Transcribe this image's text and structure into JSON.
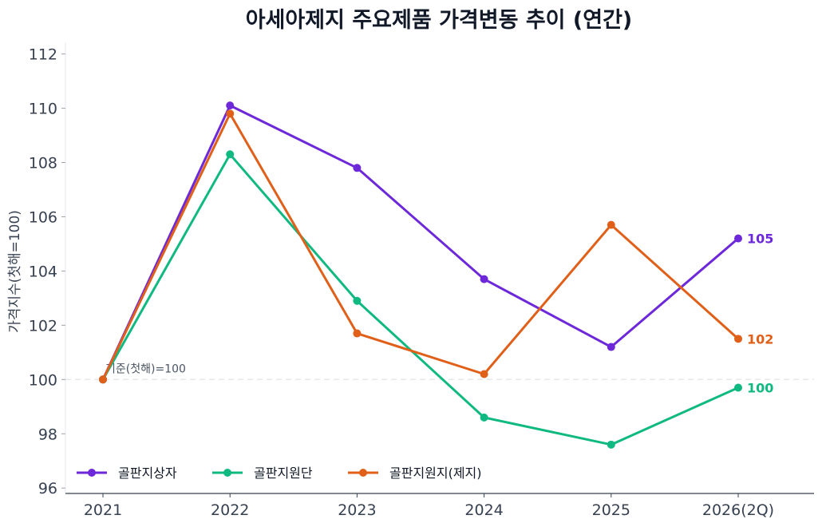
{
  "chart_data": {
    "type": "line",
    "title": "아세아제지 주요제품 가격변동 추이 (연간)",
    "ylabel": "가격지수(첫해=100)",
    "xlabel": "",
    "categories": [
      "2021",
      "2022",
      "2023",
      "2024",
      "2025",
      "2026(2Q)"
    ],
    "ylim": [
      95.8,
      112.4
    ],
    "yticks": [
      96,
      98,
      100,
      102,
      104,
      106,
      108,
      110,
      112
    ],
    "grid": false,
    "legend_position": "bottom-left",
    "reference_line": {
      "value": 100,
      "label": "기준(첫해)=100",
      "color": "#e5e7eb"
    },
    "series": [
      {
        "name": "골판지상자",
        "color": "#6d28d9",
        "values": [
          100,
          110.1,
          107.8,
          103.7,
          101.2,
          105.2
        ],
        "end_label": "105"
      },
      {
        "name": "골판지원단",
        "color": "#10b981",
        "values": [
          100,
          108.3,
          102.9,
          98.6,
          97.6,
          99.7
        ],
        "end_label": "100"
      },
      {
        "name": "골판지원지(제지)",
        "color": "#e0601a",
        "values": [
          100,
          109.8,
          101.7,
          100.2,
          105.7,
          101.5
        ],
        "end_label": "102"
      }
    ]
  }
}
